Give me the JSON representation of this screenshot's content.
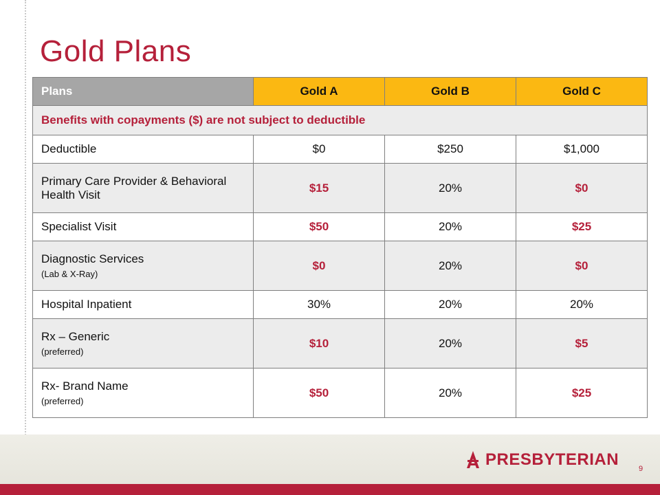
{
  "slide": {
    "title": "Gold Plans",
    "page_number": "9",
    "logo_text": "PRESBYTERIAN"
  },
  "colors": {
    "accent_red": "#b5203a",
    "gold_header": "#fbb812",
    "grey_header": "#a6a6a6",
    "row_grey": "#ececec"
  },
  "table": {
    "headers": [
      "Plans",
      "Gold A",
      "Gold B",
      "Gold C"
    ],
    "note": "Benefits with copayments ($) are not subject to deductible",
    "rows": [
      {
        "label": "Deductible",
        "sublabel": "",
        "values": [
          "$0",
          "$250",
          "$1,000"
        ]
      },
      {
        "label": "Primary Care Provider & Behavioral Health Visit",
        "sublabel": "",
        "values": [
          "$15",
          "20%",
          "$0"
        ]
      },
      {
        "label": "Specialist Visit",
        "sublabel": "",
        "values": [
          "$50",
          "20%",
          "$25"
        ]
      },
      {
        "label": "Diagnostic Services",
        "sublabel": "(Lab & X-Ray)",
        "values": [
          "$0",
          "20%",
          "$0"
        ]
      },
      {
        "label": "Hospital Inpatient",
        "sublabel": "",
        "values": [
          "30%",
          "20%",
          "20%"
        ]
      },
      {
        "label": "Rx – Generic",
        "sublabel": "(preferred)",
        "values": [
          "$10",
          "20%",
          "$5"
        ]
      },
      {
        "label": "Rx- Brand Name",
        "sublabel": "(preferred)",
        "values": [
          "$50",
          "20%",
          "$25"
        ]
      }
    ]
  }
}
